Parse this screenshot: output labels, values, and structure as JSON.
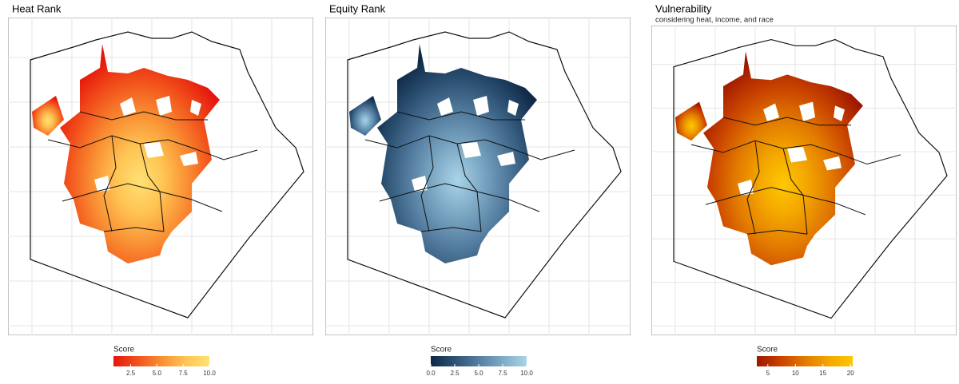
{
  "panels": [
    {
      "title": "Heat Rank",
      "legend": {
        "title": "Score",
        "range": [
          0.86,
          10.0
        ],
        "ticks": [
          {
            "value": 2.5,
            "label": "2.5"
          },
          {
            "value": 5.0,
            "label": "5.0"
          },
          {
            "value": 7.5,
            "label": "7.5"
          },
          {
            "value": 10.0,
            "label": "10.0"
          }
        ],
        "colors": [
          "#e5150d",
          "#f2521b",
          "#f98f33",
          "#ffc453",
          "#ffe174"
        ]
      }
    },
    {
      "title": "Equity Rank",
      "legend": {
        "title": "Score",
        "range": [
          0.0,
          10.0
        ],
        "ticks": [
          {
            "value": 0.0,
            "label": "0.0"
          },
          {
            "value": 2.5,
            "label": "2.5"
          },
          {
            "value": 5.0,
            "label": "5.0"
          },
          {
            "value": 7.5,
            "label": "7.5"
          },
          {
            "value": 10.0,
            "label": "10.0"
          }
        ],
        "colors": [
          "#0e2846",
          "#2d5274",
          "#557ea0",
          "#7eaac6",
          "#a9d4e8"
        ]
      }
    },
    {
      "title": "Vulnerability",
      "subtitle": "considering heat, income, and race",
      "legend": {
        "title": "Score",
        "range": [
          3.0,
          20.4
        ],
        "ticks": [
          5,
          10,
          15,
          20
        ],
        "colors": [
          "#9e1700",
          "#c94300",
          "#e27a00",
          "#f3a600",
          "#ffc800"
        ]
      }
    }
  ]
}
